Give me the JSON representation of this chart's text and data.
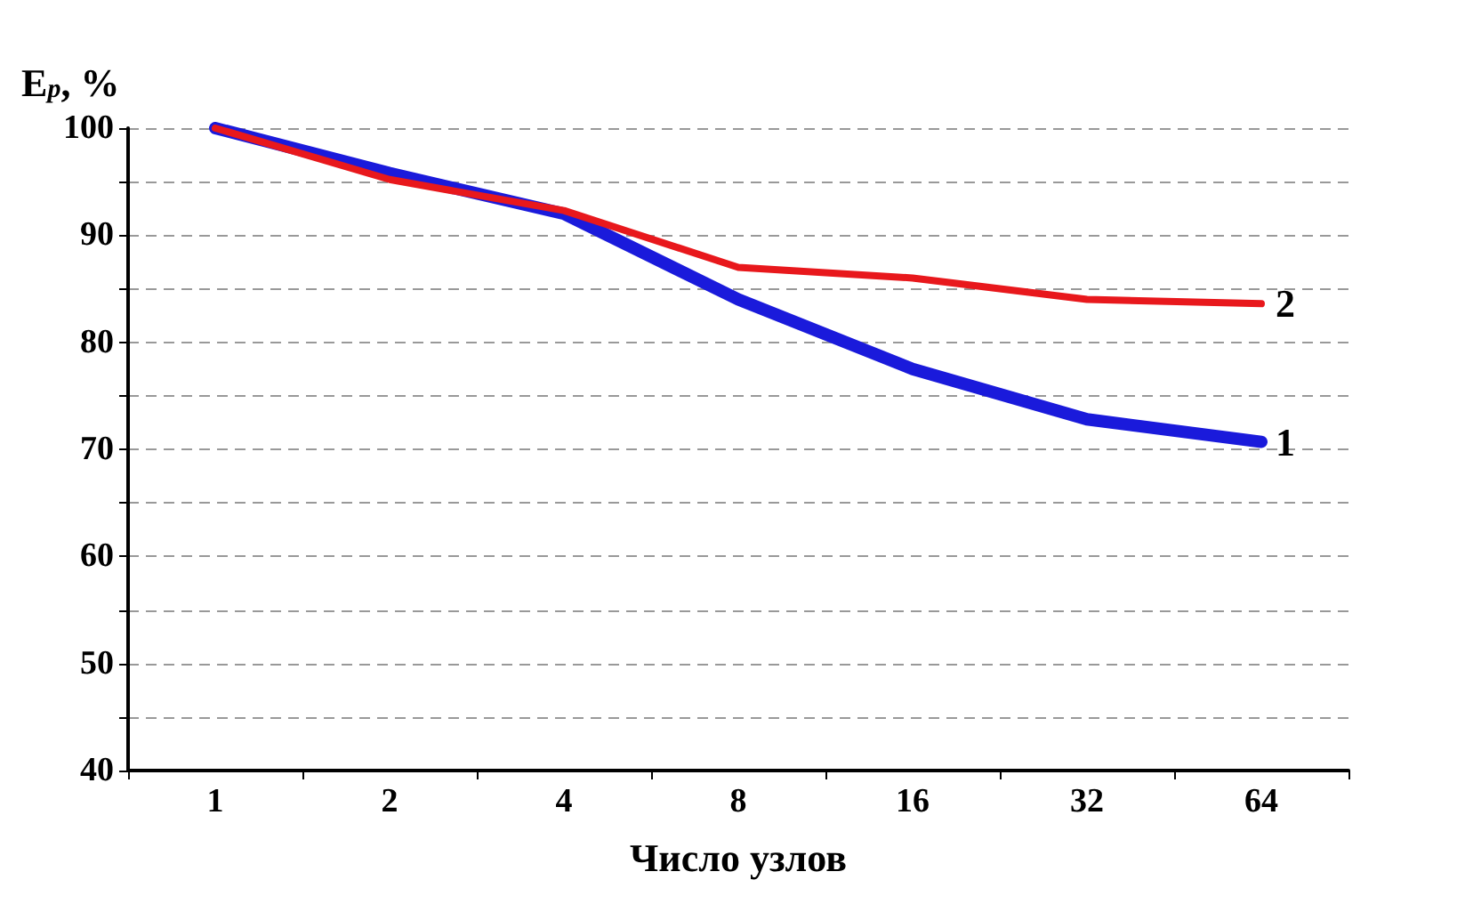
{
  "chart_data": {
    "type": "line",
    "xlabel": "Число узлов",
    "ylabel": "E$_{p}$, %",
    "categories": [
      "1",
      "2",
      "4",
      "8",
      "16",
      "32",
      "64"
    ],
    "series": [
      {
        "name": "1",
        "color": "#1a1adb",
        "values": [
          100,
          95.8,
          92,
          84,
          77.5,
          72.8,
          70.7
        ]
      },
      {
        "name": "2",
        "color": "#e8181c",
        "values": [
          100,
          95.2,
          92.3,
          87,
          86,
          84,
          83.6
        ]
      }
    ],
    "ylim": [
      40,
      100
    ],
    "yticks": [
      40,
      {
        "value": 45,
        "label": null
      },
      50,
      {
        "value": 55,
        "label": null
      },
      60,
      {
        "value": 65,
        "label": null
      },
      70,
      {
        "value": 75,
        "label": null
      },
      80,
      {
        "value": 85,
        "label": null
      },
      90,
      {
        "value": 95,
        "label": null
      },
      100
    ],
    "grid": "y",
    "legend": false,
    "marker": "none",
    "line_style": "solid"
  }
}
